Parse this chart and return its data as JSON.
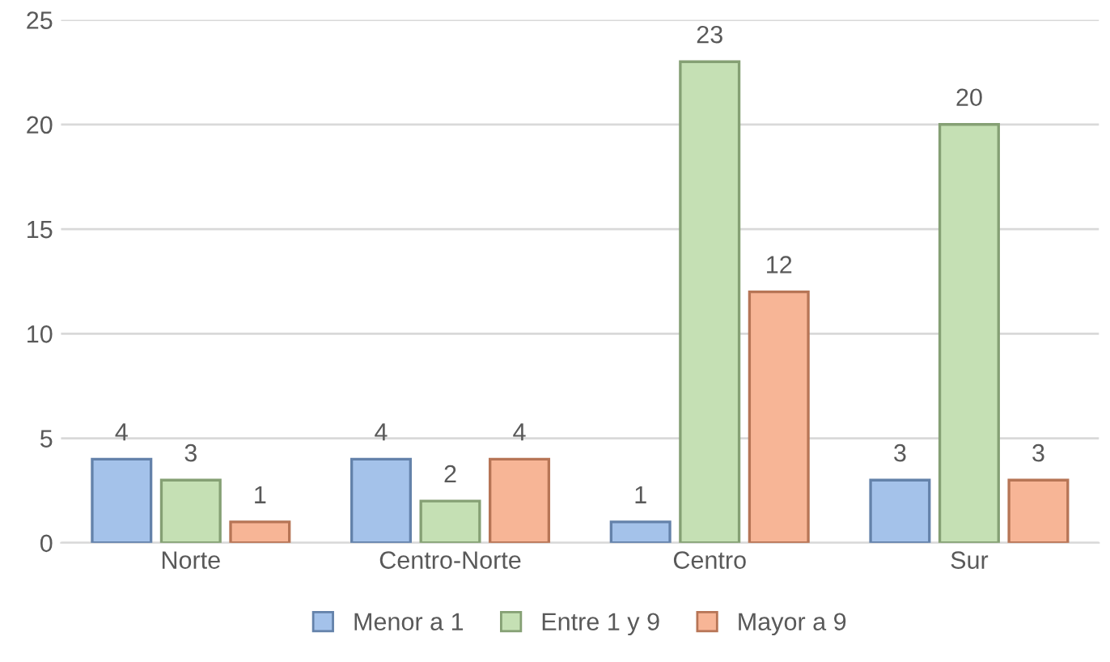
{
  "chart_data": {
    "type": "bar",
    "categories": [
      "Norte",
      "Centro-Norte",
      "Centro",
      "Sur"
    ],
    "series": [
      {
        "name": "Menor a 1",
        "color": "#a4c2ea",
        "values": [
          4,
          4,
          1,
          3
        ]
      },
      {
        "name": "Entre 1 y 9",
        "color": "#c5e0b4",
        "values": [
          3,
          2,
          23,
          20
        ]
      },
      {
        "name": "Mayor a 9",
        "color": "#f7b596",
        "values": [
          1,
          4,
          12,
          3
        ]
      }
    ],
    "ylim": [
      0,
      25
    ],
    "yticks": [
      0,
      5,
      10,
      15,
      20,
      25
    ],
    "grid": "y",
    "legend": "bottom",
    "data_labels": true
  }
}
